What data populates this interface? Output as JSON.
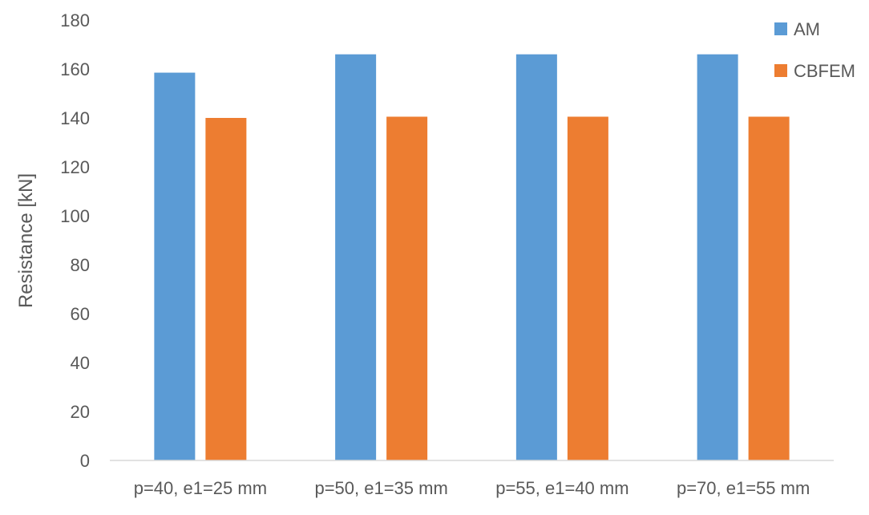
{
  "chart_data": {
    "type": "bar",
    "title": "",
    "xlabel": "",
    "ylabel": "Resistance [kN]",
    "ylim": [
      0,
      180
    ],
    "yticks": [
      0,
      20,
      40,
      60,
      80,
      100,
      120,
      140,
      160,
      180
    ],
    "grid": false,
    "legend_position": "top-right",
    "categories": [
      "p=40, e1=25 mm",
      "p=50, e1=35 mm",
      "p=55, e1=40 mm",
      "p=70, e1=55 mm"
    ],
    "series": [
      {
        "name": "AM",
        "color": "#5B9BD5",
        "values": [
          158.5,
          166,
          166,
          166
        ]
      },
      {
        "name": "CBFEM",
        "color": "#ED7D31",
        "values": [
          140,
          140.5,
          140.5,
          140.5
        ]
      }
    ]
  }
}
